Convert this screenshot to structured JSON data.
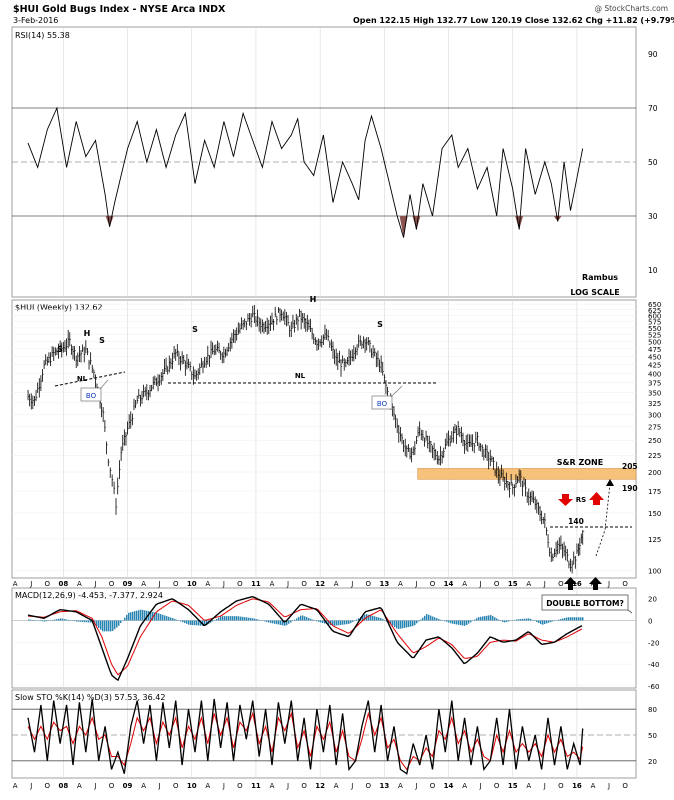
{
  "header": {
    "title": "$HUI Gold Bugs Index - NYSE Arca INDX",
    "date": "3-Feb-2016",
    "watermark": "@ StockCharts.com",
    "ohlc": "Open 122.15   High 132.77   Low 120.19   Close 132.62   Chg +11.82 (+9.79%)"
  },
  "colors": {
    "price": "#000000",
    "macd_signal": "#e00000",
    "macd_hist": "#1e7fae",
    "rsi_fill": "#8c5450",
    "sr_zone": "#f6c27a",
    "grid": "#d8d8d8",
    "arrow_red": "#e00000",
    "arrow_black": "#000000"
  },
  "chart_data": [
    {
      "type": "line",
      "panel": "rsi",
      "legend": "RSI(14) 55.38",
      "ylim": [
        0,
        100
      ],
      "yticks": [
        10,
        30,
        50,
        70,
        90
      ],
      "levels": [
        30,
        50,
        70
      ],
      "x": [
        2007.45,
        2007.6,
        2007.75,
        2007.9,
        2008.05,
        2008.2,
        2008.35,
        2008.5,
        2008.65,
        2008.72,
        2008.8,
        2008.9,
        2009.0,
        2009.15,
        2009.3,
        2009.45,
        2009.6,
        2009.75,
        2009.9,
        2010.05,
        2010.2,
        2010.35,
        2010.5,
        2010.65,
        2010.8,
        2010.95,
        2011.1,
        2011.25,
        2011.4,
        2011.55,
        2011.65,
        2011.75,
        2011.9,
        2012.05,
        2012.2,
        2012.35,
        2012.5,
        2012.6,
        2012.7,
        2012.8,
        2012.95,
        2013.1,
        2013.2,
        2013.3,
        2013.4,
        2013.5,
        2013.6,
        2013.75,
        2013.9,
        2014.05,
        2014.15,
        2014.3,
        2014.45,
        2014.6,
        2014.75,
        2014.85,
        2015.0,
        2015.1,
        2015.2,
        2015.35,
        2015.5,
        2015.6,
        2015.7,
        2015.8,
        2015.9,
        2016.0,
        2016.09
      ],
      "values": [
        57,
        48,
        62,
        70,
        48,
        65,
        52,
        58,
        38,
        26,
        35,
        45,
        55,
        65,
        50,
        62,
        48,
        60,
        68,
        42,
        58,
        48,
        65,
        52,
        68,
        58,
        48,
        65,
        55,
        60,
        66,
        50,
        45,
        60,
        35,
        50,
        42,
        36,
        58,
        67,
        55,
        40,
        30,
        22,
        38,
        25,
        42,
        30,
        55,
        60,
        48,
        55,
        40,
        48,
        30,
        55,
        40,
        25,
        55,
        38,
        50,
        42,
        28,
        50,
        32,
        44,
        55
      ]
    },
    {
      "type": "ohlc",
      "panel": "price",
      "legend": "$HUI (Weekly) 132.62",
      "scale": "log",
      "ylim": [
        95,
        660
      ],
      "yticks": [
        100,
        125,
        150,
        175,
        200,
        225,
        250,
        275,
        300,
        325,
        350,
        375,
        400,
        425,
        450,
        475,
        500,
        525,
        550,
        575,
        600,
        625,
        650
      ],
      "x": [
        2007.45,
        2007.55,
        2007.7,
        2007.85,
        2008.0,
        2008.1,
        2008.2,
        2008.35,
        2008.5,
        2008.62,
        2008.7,
        2008.76,
        2008.82,
        2008.9,
        2009.0,
        2009.15,
        2009.3,
        2009.45,
        2009.6,
        2009.75,
        2009.9,
        2010.05,
        2010.2,
        2010.35,
        2010.5,
        2010.65,
        2010.8,
        2010.95,
        2011.1,
        2011.25,
        2011.4,
        2011.55,
        2011.68,
        2011.8,
        2011.95,
        2012.1,
        2012.25,
        2012.4,
        2012.55,
        2012.7,
        2012.8,
        2012.95,
        2013.05,
        2013.15,
        2013.25,
        2013.35,
        2013.45,
        2013.55,
        2013.7,
        2013.85,
        2014.0,
        2014.15,
        2014.3,
        2014.45,
        2014.55,
        2014.65,
        2014.75,
        2014.85,
        2015.0,
        2015.1,
        2015.2,
        2015.35,
        2015.5,
        2015.6,
        2015.7,
        2015.8,
        2015.9,
        2016.0,
        2016.09
      ],
      "values": [
        340,
        330,
        420,
        460,
        480,
        500,
        450,
        470,
        390,
        300,
        220,
        190,
        160,
        230,
        270,
        330,
        350,
        380,
        410,
        460,
        430,
        390,
        440,
        470,
        460,
        520,
        560,
        600,
        560,
        580,
        620,
        540,
        600,
        560,
        500,
        520,
        440,
        420,
        480,
        510,
        470,
        420,
        350,
        300,
        260,
        230,
        230,
        270,
        240,
        220,
        250,
        270,
        240,
        250,
        230,
        220,
        200,
        190,
        180,
        195,
        175,
        160,
        140,
        110,
        120,
        115,
        105,
        112,
        132
      ]
    },
    {
      "type": "line",
      "panel": "macd",
      "legend": "MACD(12,26,9) -4.453, -7.377, 2.924",
      "ylim": [
        -62,
        28
      ],
      "yticks": [
        -60,
        -40,
        -20,
        0,
        20
      ],
      "x": [
        2007.45,
        2007.7,
        2007.95,
        2008.2,
        2008.45,
        2008.6,
        2008.75,
        2008.85,
        2009.0,
        2009.2,
        2009.45,
        2009.7,
        2009.95,
        2010.2,
        2010.45,
        2010.7,
        2010.95,
        2011.2,
        2011.45,
        2011.7,
        2011.95,
        2012.2,
        2012.45,
        2012.7,
        2012.95,
        2013.2,
        2013.45,
        2013.65,
        2013.85,
        2014.05,
        2014.25,
        2014.45,
        2014.65,
        2014.85,
        2015.05,
        2015.25,
        2015.45,
        2015.65,
        2015.85,
        2016.09
      ],
      "series": [
        {
          "values": [
            5,
            2,
            10,
            8,
            0,
            -25,
            -50,
            -55,
            -35,
            -5,
            15,
            20,
            10,
            -5,
            8,
            18,
            22,
            15,
            -2,
            15,
            10,
            -10,
            -15,
            8,
            12,
            -20,
            -35,
            -18,
            -15,
            -25,
            -40,
            -30,
            -15,
            -20,
            -18,
            -10,
            -22,
            -20,
            -12,
            -4.453
          ]
        },
        {
          "values": [
            4,
            3,
            8,
            9,
            2,
            -15,
            -40,
            -50,
            -42,
            -15,
            8,
            18,
            14,
            0,
            4,
            14,
            20,
            17,
            3,
            10,
            11,
            -5,
            -12,
            2,
            10,
            -12,
            -30,
            -24,
            -16,
            -22,
            -35,
            -33,
            -20,
            -18,
            -19,
            -12,
            -18,
            -20,
            -15,
            -7.377
          ]
        },
        {
          "values": [
            1,
            -1,
            2,
            -1,
            -2,
            -10,
            -10,
            -5,
            7,
            10,
            7,
            2,
            -4,
            -5,
            4,
            4,
            2,
            -2,
            -5,
            5,
            -1,
            -5,
            -3,
            6,
            2,
            -8,
            -5,
            6,
            1,
            -3,
            -5,
            3,
            5,
            -2,
            1,
            2,
            -4,
            0,
            3,
            2.924
          ]
        }
      ]
    },
    {
      "type": "line",
      "panel": "sto",
      "legend": "Slow STO %K(14) %D(3) 57.53, 36.42",
      "ylim": [
        0,
        100
      ],
      "yticks": [
        20,
        50,
        80
      ],
      "levels": [
        20,
        50,
        80
      ],
      "x": [
        2007.45,
        2007.55,
        2007.65,
        2007.75,
        2007.85,
        2007.95,
        2008.05,
        2008.15,
        2008.25,
        2008.35,
        2008.45,
        2008.55,
        2008.65,
        2008.75,
        2008.85,
        2008.95,
        2009.05,
        2009.15,
        2009.25,
        2009.35,
        2009.45,
        2009.55,
        2009.65,
        2009.75,
        2009.85,
        2009.95,
        2010.05,
        2010.15,
        2010.25,
        2010.35,
        2010.45,
        2010.55,
        2010.65,
        2010.75,
        2010.85,
        2010.95,
        2011.05,
        2011.15,
        2011.25,
        2011.35,
        2011.45,
        2011.55,
        2011.65,
        2011.75,
        2011.85,
        2011.95,
        2012.05,
        2012.15,
        2012.25,
        2012.35,
        2012.45,
        2012.55,
        2012.65,
        2012.75,
        2012.85,
        2012.95,
        2013.05,
        2013.15,
        2013.25,
        2013.35,
        2013.45,
        2013.55,
        2013.65,
        2013.75,
        2013.85,
        2013.95,
        2014.05,
        2014.15,
        2014.25,
        2014.35,
        2014.45,
        2014.55,
        2014.65,
        2014.75,
        2014.85,
        2014.95,
        2015.05,
        2015.15,
        2015.25,
        2015.35,
        2015.45,
        2015.55,
        2015.65,
        2015.75,
        2015.85,
        2015.95,
        2016.05,
        2016.09
      ],
      "series": [
        {
          "values": [
            70,
            30,
            85,
            20,
            90,
            40,
            85,
            15,
            88,
            30,
            92,
            20,
            60,
            10,
            30,
            5,
            60,
            90,
            40,
            85,
            20,
            88,
            35,
            90,
            15,
            80,
            30,
            90,
            20,
            92,
            35,
            88,
            20,
            85,
            45,
            90,
            25,
            80,
            15,
            88,
            40,
            90,
            20,
            70,
            10,
            80,
            30,
            85,
            15,
            75,
            10,
            20,
            60,
            90,
            30,
            85,
            20,
            60,
            10,
            5,
            40,
            15,
            50,
            10,
            80,
            30,
            90,
            20,
            70,
            15,
            60,
            10,
            20,
            70,
            15,
            80,
            10,
            60,
            20,
            50,
            10,
            70,
            15,
            60,
            10,
            40,
            15,
            57.53
          ]
        },
        {
          "values": [
            60,
            45,
            60,
            45,
            65,
            55,
            60,
            40,
            60,
            50,
            70,
            45,
            50,
            25,
            25,
            15,
            40,
            70,
            55,
            70,
            40,
            65,
            50,
            70,
            35,
            60,
            45,
            70,
            40,
            75,
            50,
            70,
            35,
            65,
            55,
            75,
            40,
            60,
            30,
            70,
            55,
            75,
            35,
            55,
            25,
            60,
            45,
            65,
            30,
            55,
            25,
            20,
            45,
            75,
            50,
            70,
            35,
            45,
            20,
            10,
            25,
            20,
            35,
            25,
            55,
            45,
            70,
            40,
            55,
            30,
            45,
            25,
            20,
            50,
            30,
            55,
            30,
            40,
            30,
            40,
            25,
            50,
            30,
            45,
            25,
            30,
            22,
            36.42
          ]
        }
      ]
    }
  ],
  "xaxis": {
    "labels": [
      "A",
      "J",
      "O",
      "08",
      "A",
      "J",
      "O",
      "09",
      "A",
      "J",
      "O",
      "10",
      "A",
      "J",
      "O",
      "11",
      "A",
      "J",
      "O",
      "12",
      "A",
      "J",
      "O",
      "13",
      "A",
      "J",
      "O",
      "14",
      "A",
      "J",
      "O",
      "15",
      "A",
      "J",
      "O",
      "16",
      "A",
      "J",
      "O"
    ],
    "positions": [
      2007.25,
      2007.5,
      2007.75,
      2008.0,
      2008.25,
      2008.5,
      2008.75,
      2009.0,
      2009.25,
      2009.5,
      2009.75,
      2010.0,
      2010.25,
      2010.5,
      2010.75,
      2011.0,
      2011.25,
      2011.5,
      2011.75,
      2012.0,
      2012.25,
      2012.5,
      2012.75,
      2013.0,
      2013.25,
      2013.5,
      2013.75,
      2014.0,
      2014.25,
      2014.5,
      2014.75,
      2015.0,
      2015.25,
      2015.5,
      2015.75,
      2016.0,
      2016.25,
      2016.5,
      2016.75
    ]
  },
  "annotations": {
    "rambus": "Rambus",
    "log_scale": "LOG SCALE",
    "s1": "S",
    "h1": "H",
    "s2": "S",
    "nl1": "NL",
    "bo1": "BO",
    "s3": "S",
    "h2": "H",
    "s4": "S",
    "nl2": "NL",
    "bo2": "BO",
    "sr_zone": "S&R ZONE",
    "lvl_205": "205",
    "lvl_190": "190",
    "lvl_140": "140",
    "rs": "RS",
    "double_bottom": "DOUBLE BOTTOM?"
  }
}
